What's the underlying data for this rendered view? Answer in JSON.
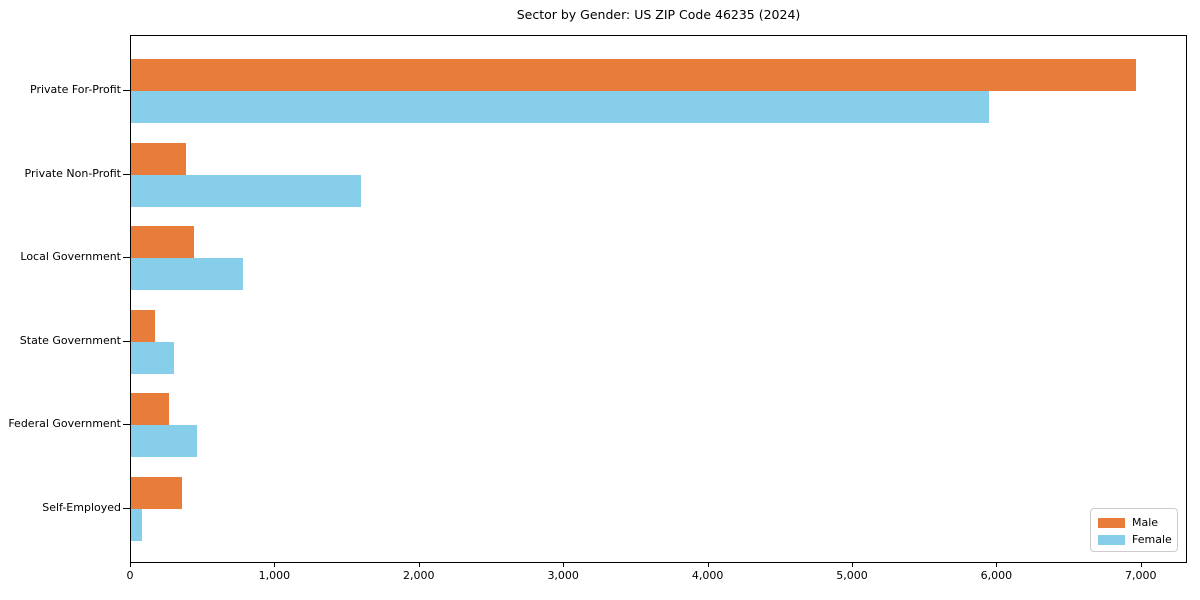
{
  "chart_data": {
    "type": "bar",
    "orientation": "horizontal",
    "title": "Sector by Gender: US ZIP Code 46235 (2024)",
    "categories": [
      "Private For-Profit",
      "Private Non-Profit",
      "Local Government",
      "State Government",
      "Federal Government",
      "Self-Employed"
    ],
    "series": [
      {
        "name": "Male",
        "color": "#E77C3B",
        "values": [
          6960,
          380,
          435,
          165,
          260,
          350
        ]
      },
      {
        "name": "Female",
        "color": "#87CEEB",
        "values": [
          5940,
          1590,
          775,
          300,
          460,
          75
        ]
      }
    ],
    "xlabel": "",
    "ylabel": "",
    "x_tick_labels": [
      "0",
      "1,000",
      "2,000",
      "3,000",
      "4,000",
      "5,000",
      "6,000",
      "7,000"
    ],
    "x_tick_values": [
      0,
      1000,
      2000,
      3000,
      4000,
      5000,
      6000,
      7000
    ],
    "xlim": [
      0,
      7320
    ],
    "grid": false,
    "legend": {
      "position": "lower right",
      "entries": [
        "Male",
        "Female"
      ]
    }
  }
}
